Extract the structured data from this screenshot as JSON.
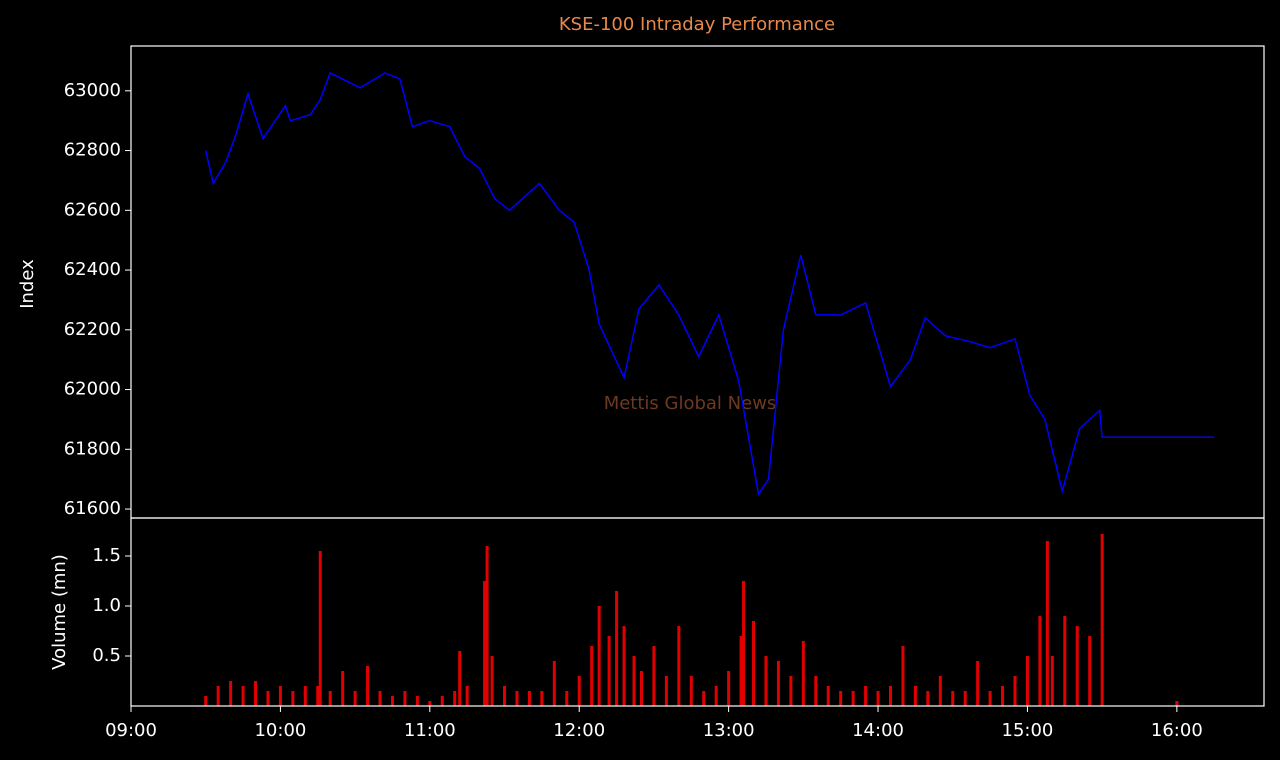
{
  "chart_data": [
    {
      "type": "line",
      "title": "KSE-100 Intraday Performance",
      "y_label": "Index",
      "watermark": "Mettis Global News",
      "color": "#0000ff",
      "x": [
        "09:30",
        "09:33",
        "09:38",
        "09:42",
        "09:47",
        "09:53",
        "10:02",
        "10:04",
        "10:12",
        "10:16",
        "10:20",
        "10:32",
        "10:42",
        "10:48",
        "10:53",
        "11:00",
        "11:08",
        "11:14",
        "11:20",
        "11:26",
        "11:32",
        "11:44",
        "11:52",
        "11:58",
        "12:04",
        "12:08",
        "12:18",
        "12:24",
        "12:32",
        "12:40",
        "12:48",
        "12:56",
        "13:04",
        "13:12",
        "13:16",
        "13:22",
        "13:29",
        "13:35",
        "13:45",
        "13:55",
        "14:05",
        "14:13",
        "14:19",
        "14:27",
        "14:37",
        "14:45",
        "14:55",
        "15:01",
        "15:07",
        "15:14",
        "15:21",
        "15:29",
        "15:30",
        "16:15"
      ],
      "values": [
        62800,
        62690,
        62760,
        62850,
        62990,
        62840,
        62950,
        62900,
        62920,
        62970,
        63060,
        63010,
        63060,
        63040,
        62880,
        62900,
        62880,
        62780,
        62740,
        62640,
        62600,
        62690,
        62600,
        62560,
        62400,
        62220,
        62040,
        62270,
        62350,
        62250,
        62110,
        62250,
        62030,
        61650,
        61700,
        62200,
        62450,
        62250,
        62250,
        62290,
        62010,
        62100,
        62240,
        62180,
        62160,
        62140,
        62170,
        61980,
        61900,
        61660,
        61870,
        61930,
        61840,
        61840
      ],
      "xlim": [
        "09:00",
        "16:35"
      ],
      "ylim": [
        61570,
        63150
      ],
      "yticks": [
        61600,
        61800,
        62000,
        62200,
        62400,
        62600,
        62800,
        63000
      ]
    },
    {
      "type": "bar",
      "y_label": "Volume (mn)",
      "color": "#e00000",
      "x": [
        "09:30",
        "09:35",
        "09:40",
        "09:45",
        "09:50",
        "09:55",
        "10:00",
        "10:05",
        "10:10",
        "10:15",
        "10:16",
        "10:20",
        "10:25",
        "10:30",
        "10:35",
        "10:40",
        "10:45",
        "10:50",
        "10:55",
        "11:00",
        "11:05",
        "11:10",
        "11:12",
        "11:15",
        "11:22",
        "11:23",
        "11:25",
        "11:30",
        "11:35",
        "11:40",
        "11:45",
        "11:50",
        "11:55",
        "12:00",
        "12:05",
        "12:08",
        "12:12",
        "12:15",
        "12:18",
        "12:22",
        "12:25",
        "12:30",
        "12:35",
        "12:40",
        "12:45",
        "12:50",
        "12:55",
        "13:00",
        "13:05",
        "13:06",
        "13:10",
        "13:15",
        "13:20",
        "13:25",
        "13:30",
        "13:35",
        "13:40",
        "13:45",
        "13:50",
        "13:55",
        "14:00",
        "14:05",
        "14:10",
        "14:15",
        "14:20",
        "14:25",
        "14:30",
        "14:35",
        "14:40",
        "14:45",
        "14:50",
        "14:55",
        "15:00",
        "15:05",
        "15:08",
        "15:10",
        "15:15",
        "15:20",
        "15:25",
        "15:30",
        "16:00"
      ],
      "values": [
        0.1,
        0.2,
        0.25,
        0.2,
        0.25,
        0.15,
        0.2,
        0.15,
        0.2,
        0.2,
        1.55,
        0.15,
        0.35,
        0.15,
        0.4,
        0.15,
        0.1,
        0.15,
        0.1,
        0.05,
        0.1,
        0.15,
        0.55,
        0.2,
        1.25,
        1.6,
        0.5,
        0.2,
        0.15,
        0.15,
        0.15,
        0.45,
        0.15,
        0.3,
        0.6,
        1.0,
        0.7,
        1.15,
        0.8,
        0.5,
        0.35,
        0.6,
        0.3,
        0.8,
        0.3,
        0.15,
        0.2,
        0.35,
        0.7,
        1.25,
        0.85,
        0.5,
        0.45,
        0.3,
        0.65,
        0.3,
        0.2,
        0.15,
        0.15,
        0.2,
        0.15,
        0.2,
        0.6,
        0.2,
        0.15,
        0.3,
        0.15,
        0.15,
        0.45,
        0.15,
        0.2,
        0.3,
        0.5,
        0.9,
        1.65,
        0.5,
        0.9,
        0.8,
        0.7,
        1.72,
        0.05
      ],
      "xlim": [
        "09:00",
        "16:35"
      ],
      "ylim": [
        0,
        1.88
      ],
      "yticks": [
        0.5,
        {
          "value": 1,
          "label": "1.0"
        },
        1.5
      ],
      "xticks": [
        "09:00",
        "10:00",
        "11:00",
        "12:00",
        "13:00",
        "14:00",
        "15:00",
        "16:00"
      ]
    }
  ]
}
